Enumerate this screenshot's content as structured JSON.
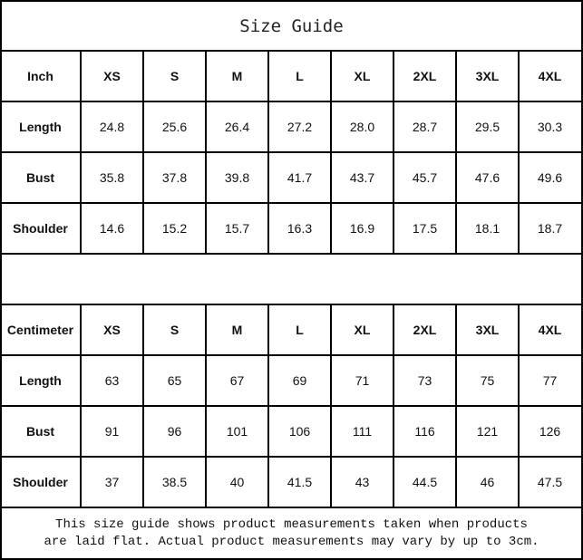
{
  "title": "Size Guide",
  "tables": [
    {
      "unit": "Inch",
      "sizes": [
        "XS",
        "S",
        "M",
        "L",
        "XL",
        "2XL",
        "3XL",
        "4XL"
      ],
      "rows": [
        {
          "label": "Length",
          "values": [
            "24.8",
            "25.6",
            "26.4",
            "27.2",
            "28.0",
            "28.7",
            "29.5",
            "30.3"
          ]
        },
        {
          "label": "Bust",
          "values": [
            "35.8",
            "37.8",
            "39.8",
            "41.7",
            "43.7",
            "45.7",
            "47.6",
            "49.6"
          ]
        },
        {
          "label": "Shoulder",
          "values": [
            "14.6",
            "15.2",
            "15.7",
            "16.3",
            "16.9",
            "17.5",
            "18.1",
            "18.7"
          ]
        }
      ]
    },
    {
      "unit": "Centimeter",
      "sizes": [
        "XS",
        "S",
        "M",
        "L",
        "XL",
        "2XL",
        "3XL",
        "4XL"
      ],
      "rows": [
        {
          "label": "Length",
          "values": [
            "63",
            "65",
            "67",
            "69",
            "71",
            "73",
            "75",
            "77"
          ]
        },
        {
          "label": "Bust",
          "values": [
            "91",
            "96",
            "101",
            "106",
            "111",
            "116",
            "121",
            "126"
          ]
        },
        {
          "label": "Shoulder",
          "values": [
            "37",
            "38.5",
            "40",
            "41.5",
            "43",
            "44.5",
            "46",
            "47.5"
          ]
        }
      ]
    }
  ],
  "note": {
    "line1": "This size guide shows product measurements taken when products",
    "line2": "are laid flat. Actual product measurements may vary by up to 3cm."
  }
}
